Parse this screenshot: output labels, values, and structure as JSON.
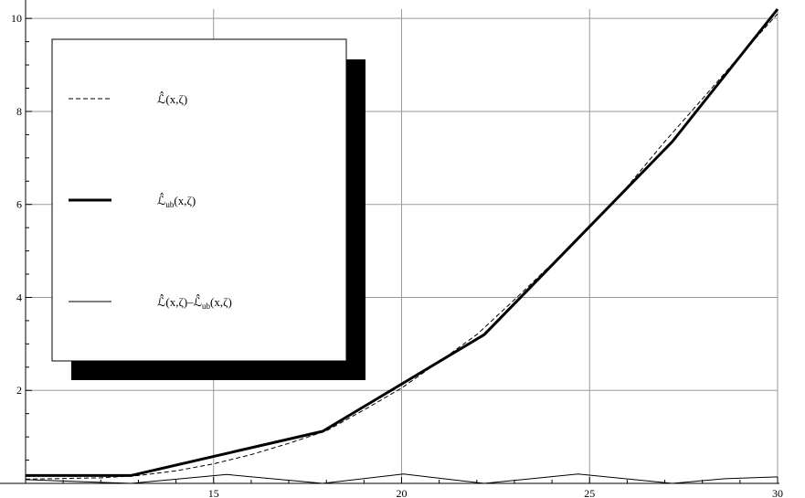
{
  "chart_data": {
    "type": "line",
    "xlim": [
      10,
      30
    ],
    "ylim": [
      0,
      10.2
    ],
    "grid": true,
    "legend_placement": "top-left",
    "x_ticks": [
      15,
      20,
      25,
      30
    ],
    "y_ticks": [
      2,
      4,
      6,
      8,
      10
    ],
    "x_tick_labels": [
      "15",
      "20",
      "25",
      "30"
    ],
    "y_tick_labels": [
      "2",
      "4",
      "6",
      "8",
      "10"
    ],
    "series": [
      {
        "name": "ℒ̂(x,ζ)",
        "style": "dashed",
        "color": "#000000",
        "x": [
          10,
          12,
          13,
          14,
          15,
          16,
          17,
          18,
          19,
          20,
          21,
          22,
          23,
          24,
          25,
          26,
          27,
          28,
          29,
          30
        ],
        "y": [
          0.09,
          0.12,
          0.17,
          0.27,
          0.42,
          0.62,
          0.86,
          1.13,
          1.58,
          2.05,
          2.62,
          3.2,
          3.95,
          4.72,
          5.5,
          6.38,
          7.35,
          8.27,
          9.2,
          10.1
        ]
      },
      {
        "name": "ℒ̂_ub(x,ζ)",
        "name_main": "ℒ̂",
        "name_sub": "ub",
        "name_suffix": "(x,ζ)",
        "style": "thick",
        "color": "#000000",
        "x": [
          10,
          12.8,
          17.9,
          22.2,
          27.2,
          30
        ],
        "y": [
          0.17,
          0.17,
          1.12,
          3.2,
          7.35,
          10.2
        ]
      },
      {
        "name": "ℒ̂(x,ζ)–ℒ̂_ub(x,ζ)",
        "name_main": "ℒ̂(x,ζ)–ℒ̂",
        "name_sub": "ub",
        "name_suffix": "(x,ζ)",
        "style": "thin",
        "color": "#000000",
        "x": [
          10,
          11.4,
          12.8,
          15.35,
          17.9,
          20.05,
          22.2,
          24.7,
          27.2,
          28.6,
          30
        ],
        "y": [
          0.08,
          0.04,
          0.0,
          0.19,
          0.0,
          0.2,
          0.0,
          0.2,
          0.0,
          0.1,
          0.14
        ]
      }
    ]
  }
}
